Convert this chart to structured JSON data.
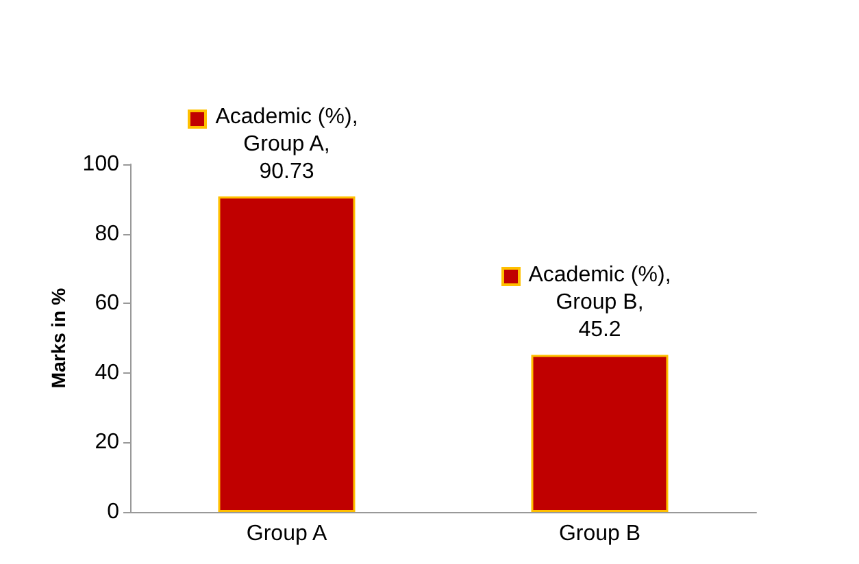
{
  "chart_data": {
    "type": "bar",
    "ylabel": "Marks in %",
    "categories": [
      "Group A",
      "Group B"
    ],
    "series": [
      {
        "color": "#c00000",
        "values": [
          90.73,
          45.2
        ],
        "value_labels": [
          "Academic (%), Group A, 90.73",
          "Academic (%), Group B, 45.2"
        ]
      }
    ],
    "ylim": [
      0,
      100
    ],
    "yticks": [
      0,
      20,
      40,
      60,
      80,
      100
    ],
    "grid": false
  }
}
